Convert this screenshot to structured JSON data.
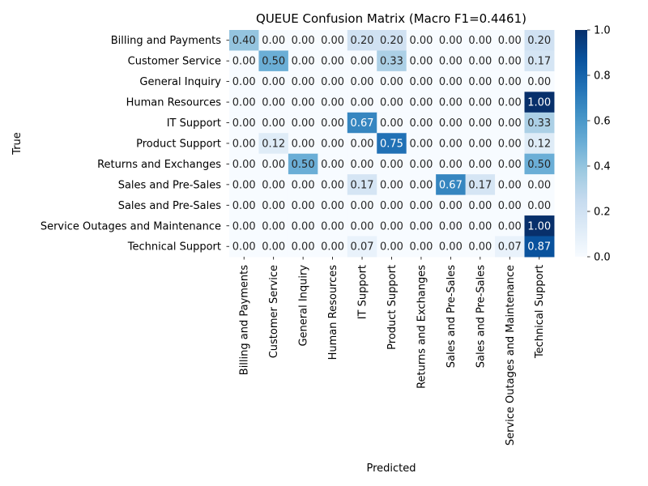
{
  "chart_data": {
    "type": "heatmap",
    "title": "QUEUE Confusion Matrix (Macro F1=0.4461)",
    "xlabel": "Predicted",
    "ylabel": "True",
    "x_categories": [
      "Billing and Payments",
      "Customer Service",
      "General Inquiry",
      "Human Resources",
      "IT Support",
      "Product Support",
      "Returns and Exchanges",
      "Sales and Pre-Sales",
      "Sales and Pre-Sales",
      "Service Outages and Maintenance",
      "Technical Support"
    ],
    "y_categories": [
      "Billing and Payments",
      "Customer Service",
      "General Inquiry",
      "Human Resources",
      "IT Support",
      "Product Support",
      "Returns and Exchanges",
      "Sales and Pre-Sales",
      "Sales and Pre-Sales",
      "Service Outages and Maintenance",
      "Technical Support"
    ],
    "values": [
      [
        0.4,
        0.0,
        0.0,
        0.0,
        0.2,
        0.2,
        0.0,
        0.0,
        0.0,
        0.0,
        0.2
      ],
      [
        0.0,
        0.5,
        0.0,
        0.0,
        0.0,
        0.33,
        0.0,
        0.0,
        0.0,
        0.0,
        0.17
      ],
      [
        0.0,
        0.0,
        0.0,
        0.0,
        0.0,
        0.0,
        0.0,
        0.0,
        0.0,
        0.0,
        0.0
      ],
      [
        0.0,
        0.0,
        0.0,
        0.0,
        0.0,
        0.0,
        0.0,
        0.0,
        0.0,
        0.0,
        1.0
      ],
      [
        0.0,
        0.0,
        0.0,
        0.0,
        0.67,
        0.0,
        0.0,
        0.0,
        0.0,
        0.0,
        0.33
      ],
      [
        0.0,
        0.12,
        0.0,
        0.0,
        0.0,
        0.75,
        0.0,
        0.0,
        0.0,
        0.0,
        0.12
      ],
      [
        0.0,
        0.0,
        0.5,
        0.0,
        0.0,
        0.0,
        0.0,
        0.0,
        0.0,
        0.0,
        0.5
      ],
      [
        0.0,
        0.0,
        0.0,
        0.0,
        0.17,
        0.0,
        0.0,
        0.67,
        0.17,
        0.0,
        0.0
      ],
      [
        0.0,
        0.0,
        0.0,
        0.0,
        0.0,
        0.0,
        0.0,
        0.0,
        0.0,
        0.0,
        0.0
      ],
      [
        0.0,
        0.0,
        0.0,
        0.0,
        0.0,
        0.0,
        0.0,
        0.0,
        0.0,
        0.0,
        1.0
      ],
      [
        0.0,
        0.0,
        0.0,
        0.0,
        0.07,
        0.0,
        0.0,
        0.0,
        0.0,
        0.07,
        0.87
      ]
    ],
    "value_format": "2 decimals",
    "colorscale": "Blues",
    "color_min": 0.0,
    "color_max": 1.0,
    "colorbar_ticks": [
      "0.0",
      "0.2",
      "0.4",
      "0.6",
      "0.8",
      "1.0"
    ],
    "colorbar_tick_values": [
      0.0,
      0.2,
      0.4,
      0.6,
      0.8,
      1.0
    ]
  }
}
